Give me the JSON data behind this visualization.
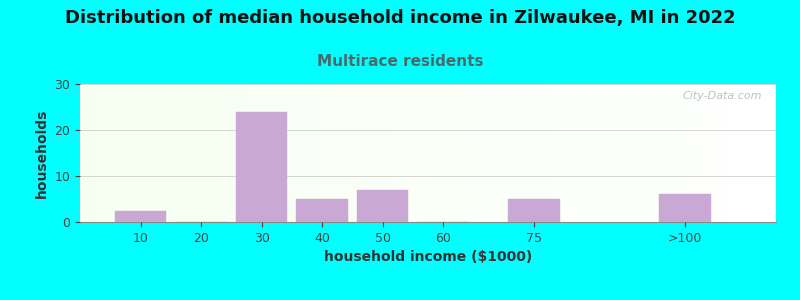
{
  "title": "Distribution of median household income in Zilwaukee, MI in 2022",
  "subtitle": "Multirace residents",
  "xlabel": "household income ($1000)",
  "ylabel": "households",
  "bar_labels": [
    "10",
    "20",
    "30",
    "40",
    "50",
    "60",
    "75",
    ">100"
  ],
  "bar_centers": [
    10,
    20,
    30,
    40,
    50,
    60,
    75,
    100
  ],
  "bar_values": [
    2.3,
    0,
    24,
    5,
    7,
    0,
    5,
    6
  ],
  "bar_color": "#C9A8D4",
  "bar_edge_color": "#C9A8D4",
  "ylim": [
    0,
    30
  ],
  "yticks": [
    0,
    10,
    20,
    30
  ],
  "xlim": [
    0,
    115
  ],
  "background_color": "#00FFFF",
  "title_fontsize": 13,
  "subtitle_fontsize": 11,
  "subtitle_color": "#4a6a6a",
  "axis_label_fontsize": 10,
  "watermark": "City-Data.com",
  "grid_color": "#cccccc",
  "bar_width": 8.5
}
